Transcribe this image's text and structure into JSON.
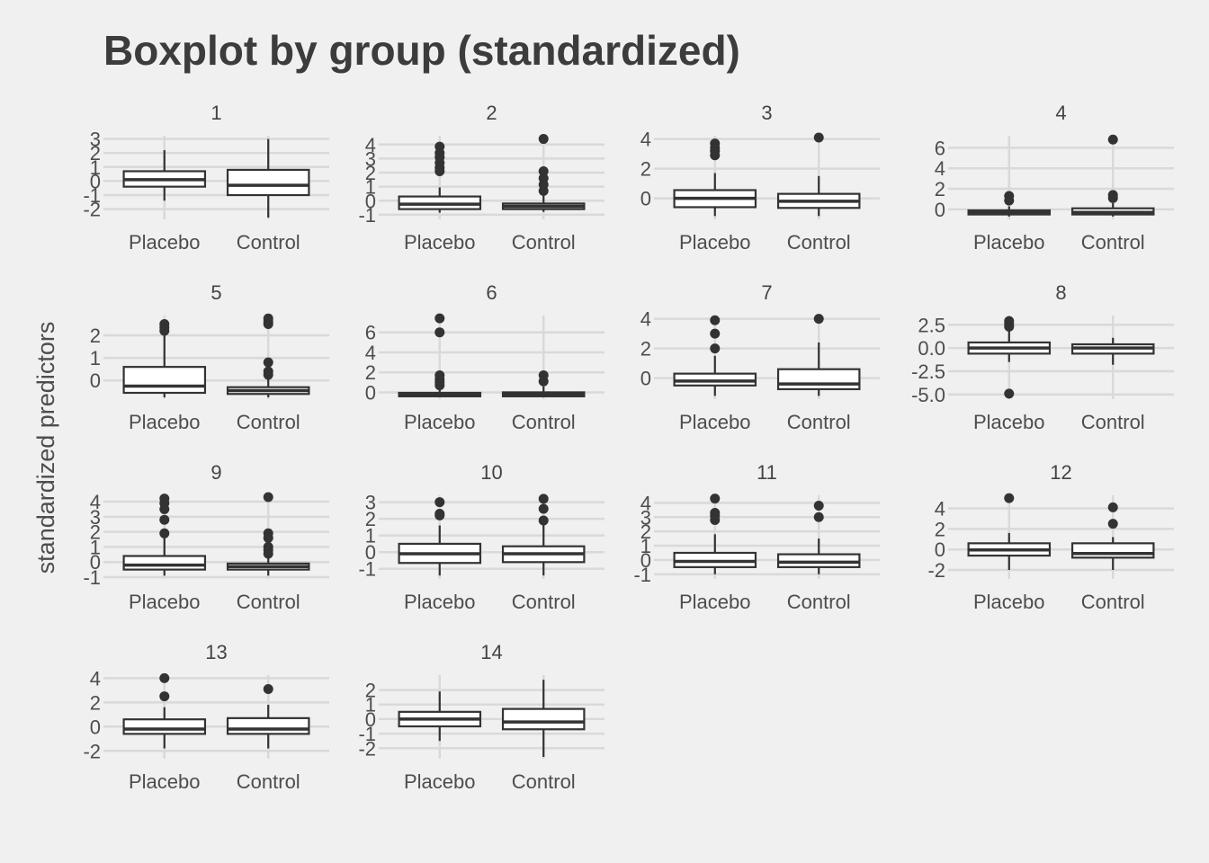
{
  "chart_data": {
    "type": "boxplot",
    "title": "Boxplot by group (standardized)",
    "ylabel": "standardized predictors",
    "xlabel": "",
    "categories": [
      "Placebo",
      "Control"
    ],
    "grid": true,
    "panels": [
      {
        "label": "1",
        "ylim": [
          -2.6,
          3.1
        ],
        "yticks": [
          3,
          2,
          1,
          0,
          -1,
          -2
        ],
        "yticklabels": [
          "3",
          "2",
          "1",
          "0",
          "-1",
          "-2"
        ],
        "groups": [
          {
            "lower": -1.4,
            "q1": -0.4,
            "median": 0.1,
            "q3": 0.7,
            "upper": 2.2,
            "outliers": []
          },
          {
            "lower": -2.6,
            "q1": -1.0,
            "median": -0.3,
            "q3": 0.8,
            "upper": 3.0,
            "outliers": []
          }
        ]
      },
      {
        "label": "2",
        "ylim": [
          -1.2,
          4.5
        ],
        "yticks": [
          4,
          3,
          2,
          1,
          0,
          -1
        ],
        "yticklabels": [
          "4",
          "3",
          "2",
          "1",
          "0",
          "-1"
        ],
        "groups": [
          {
            "lower": -0.85,
            "q1": -0.6,
            "median": -0.25,
            "q3": 0.3,
            "upper": 0.95,
            "outliers": [
              3.85,
              3.4,
              3.1,
              2.7,
              2.35,
              2.1
            ]
          },
          {
            "lower": -0.8,
            "q1": -0.6,
            "median": -0.4,
            "q3": -0.2,
            "upper": 0.4,
            "outliers": [
              4.4,
              2.1,
              1.6,
              1.15,
              0.7
            ]
          }
        ]
      },
      {
        "label": "3",
        "ylim": [
          -1.3,
          4.1
        ],
        "yticks": [
          4,
          2,
          0
        ],
        "yticklabels": [
          "4",
          "2",
          "0"
        ],
        "groups": [
          {
            "lower": -1.2,
            "q1": -0.6,
            "median": 0.0,
            "q3": 0.55,
            "upper": 1.7,
            "outliers": [
              3.7,
              3.4,
              3.2,
              2.9
            ]
          },
          {
            "lower": -1.2,
            "q1": -0.65,
            "median": -0.2,
            "q3": 0.3,
            "upper": 1.5,
            "outliers": [
              4.1
            ]
          }
        ]
      },
      {
        "label": "4",
        "ylim": [
          -0.8,
          7.0
        ],
        "yticks": [
          6,
          4,
          2,
          0
        ],
        "yticklabels": [
          "6",
          "4",
          "2",
          "0"
        ],
        "groups": [
          {
            "lower": -0.7,
            "q1": -0.5,
            "median": -0.3,
            "q3": -0.1,
            "upper": 0.3,
            "outliers": [
              1.3,
              0.85
            ]
          },
          {
            "lower": -0.7,
            "q1": -0.5,
            "median": -0.3,
            "q3": 0.1,
            "upper": 0.6,
            "outliers": [
              6.8,
              1.4,
              1.1
            ]
          }
        ]
      },
      {
        "label": "5",
        "ylim": [
          -0.75,
          2.8
        ],
        "yticks": [
          2,
          1,
          0
        ],
        "yticklabels": [
          "2",
          "1",
          "0"
        ],
        "groups": [
          {
            "lower": -0.75,
            "q1": -0.55,
            "median": -0.25,
            "q3": 0.6,
            "upper": 2.0,
            "outliers": [
              2.5,
              2.35,
              2.2
            ]
          },
          {
            "lower": -0.75,
            "q1": -0.6,
            "median": -0.45,
            "q3": -0.3,
            "upper": 0.2,
            "outliers": [
              2.75,
              2.6,
              2.5,
              0.8,
              0.4,
              0.25
            ]
          }
        ]
      },
      {
        "label": "6",
        "ylim": [
          -0.5,
          7.5
        ],
        "yticks": [
          6,
          4,
          2,
          0
        ],
        "yticklabels": [
          "6",
          "4",
          "2",
          "0"
        ],
        "groups": [
          {
            "lower": -0.5,
            "q1": -0.4,
            "median": -0.2,
            "q3": -0.05,
            "upper": 0.5,
            "outliers": [
              7.4,
              6.0,
              1.7,
              1.3,
              1.0,
              0.7
            ]
          },
          {
            "lower": -0.5,
            "q1": -0.4,
            "median": -0.2,
            "q3": 0.0,
            "upper": 0.6,
            "outliers": [
              1.7,
              1.1
            ]
          }
        ]
      },
      {
        "label": "7",
        "ylim": [
          -1.3,
          4.1
        ],
        "yticks": [
          4,
          2,
          0
        ],
        "yticklabels": [
          "4",
          "2",
          "0"
        ],
        "groups": [
          {
            "lower": -1.2,
            "q1": -0.5,
            "median": -0.2,
            "q3": 0.3,
            "upper": 1.5,
            "outliers": [
              3.9,
              3.0,
              2.0
            ]
          },
          {
            "lower": -1.2,
            "q1": -0.75,
            "median": -0.4,
            "q3": 0.6,
            "upper": 2.4,
            "outliers": [
              4.0
            ]
          }
        ]
      },
      {
        "label": "8",
        "ylim": [
          -5.3,
          3.3
        ],
        "yticks": [
          2.5,
          0.0,
          -2.5,
          -5.0
        ],
        "yticklabels": [
          "2.5",
          "0.0",
          "-2.5",
          "-5.0"
        ],
        "groups": [
          {
            "lower": -1.5,
            "q1": -0.6,
            "median": 0.0,
            "q3": 0.6,
            "upper": 1.8,
            "outliers": [
              2.9,
              2.6,
              2.3,
              -4.9
            ]
          },
          {
            "lower": -1.8,
            "q1": -0.6,
            "median": 0.0,
            "q3": 0.4,
            "upper": 1.1,
            "outliers": []
          }
        ]
      },
      {
        "label": "9",
        "ylim": [
          -1.0,
          4.3
        ],
        "yticks": [
          4,
          3,
          2,
          1,
          0,
          -1
        ],
        "yticklabels": [
          "4",
          "3",
          "2",
          "1",
          "0",
          "-1"
        ],
        "groups": [
          {
            "lower": -0.9,
            "q1": -0.5,
            "median": -0.2,
            "q3": 0.4,
            "upper": 1.7,
            "outliers": [
              4.2,
              3.9,
              3.5,
              2.8,
              1.9
            ]
          },
          {
            "lower": -0.9,
            "q1": -0.5,
            "median": -0.3,
            "q3": -0.1,
            "upper": 0.3,
            "outliers": [
              4.3,
              1.9,
              1.6,
              1.0,
              0.8,
              0.55
            ]
          }
        ]
      },
      {
        "label": "10",
        "ylim": [
          -1.5,
          3.3
        ],
        "yticks": [
          3,
          2,
          1,
          0,
          -1
        ],
        "yticklabels": [
          "3",
          "2",
          "1",
          "0",
          "-1"
        ],
        "groups": [
          {
            "lower": -1.4,
            "q1": -0.65,
            "median": -0.1,
            "q3": 0.5,
            "upper": 1.6,
            "outliers": [
              3.0,
              2.3,
              2.2
            ]
          },
          {
            "lower": -1.4,
            "q1": -0.6,
            "median": -0.1,
            "q3": 0.35,
            "upper": 1.7,
            "outliers": [
              3.2,
              2.6,
              1.9
            ]
          }
        ]
      },
      {
        "label": "11",
        "ylim": [
          -1.2,
          4.4
        ],
        "yticks": [
          4,
          3,
          2,
          1,
          0,
          -1
        ],
        "yticklabels": [
          "4",
          "3",
          "2",
          "1",
          "0",
          "-1"
        ],
        "groups": [
          {
            "lower": -1.0,
            "q1": -0.5,
            "median": -0.1,
            "q3": 0.5,
            "upper": 1.8,
            "outliers": [
              4.3,
              3.3,
              3.1,
              2.8
            ]
          },
          {
            "lower": -1.0,
            "q1": -0.5,
            "median": -0.15,
            "q3": 0.4,
            "upper": 1.5,
            "outliers": [
              3.8,
              3.0
            ]
          }
        ]
      },
      {
        "label": "12",
        "ylim": [
          -2.7,
          5.1
        ],
        "yticks": [
          4,
          2,
          0,
          -2
        ],
        "yticklabels": [
          "4",
          "2",
          "0",
          "-2"
        ],
        "groups": [
          {
            "lower": -2.0,
            "q1": -0.6,
            "median": -0.05,
            "q3": 0.6,
            "upper": 1.6,
            "outliers": [
              5.0
            ]
          },
          {
            "lower": -2.0,
            "q1": -0.8,
            "median": -0.4,
            "q3": 0.6,
            "upper": 1.2,
            "outliers": [
              4.1,
              2.5
            ]
          }
        ]
      },
      {
        "label": "13",
        "ylim": [
          -2.5,
          4.1
        ],
        "yticks": [
          4,
          2,
          0,
          -2
        ],
        "yticklabels": [
          "4",
          "2",
          "0",
          "-2"
        ],
        "groups": [
          {
            "lower": -1.8,
            "q1": -0.6,
            "median": -0.2,
            "q3": 0.6,
            "upper": 1.6,
            "outliers": [
              4.0,
              2.5
            ]
          },
          {
            "lower": -1.8,
            "q1": -0.6,
            "median": -0.2,
            "q3": 0.7,
            "upper": 1.8,
            "outliers": [
              3.1
            ]
          }
        ]
      },
      {
        "label": "14",
        "ylim": [
          -2.6,
          2.9
        ],
        "yticks": [
          2,
          1,
          0,
          -1,
          -2
        ],
        "yticklabels": [
          "2",
          "1",
          "0",
          "-1",
          "-2"
        ],
        "groups": [
          {
            "lower": -1.5,
            "q1": -0.5,
            "median": 0.0,
            "q3": 0.5,
            "upper": 1.9,
            "outliers": []
          },
          {
            "lower": -2.6,
            "q1": -0.7,
            "median": -0.2,
            "q3": 0.7,
            "upper": 2.7,
            "outliers": []
          }
        ]
      }
    ]
  }
}
